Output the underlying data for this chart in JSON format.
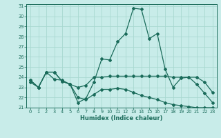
{
  "xlabel": "Humidex (Indice chaleur)",
  "bg_color": "#c8ece9",
  "grid_color": "#a8d8d0",
  "line_color": "#1a6b5a",
  "x": [
    0,
    1,
    2,
    3,
    4,
    5,
    6,
    7,
    8,
    9,
    10,
    11,
    12,
    13,
    14,
    15,
    16,
    17,
    18,
    19,
    20,
    21,
    22,
    23
  ],
  "line1": [
    23.5,
    23.0,
    24.5,
    23.8,
    23.7,
    23.3,
    21.5,
    21.9,
    23.5,
    25.8,
    25.7,
    27.5,
    28.3,
    30.8,
    30.7,
    27.8,
    28.3,
    24.8,
    23.0,
    23.9,
    24.0,
    23.3,
    22.4,
    21.5
  ],
  "line2": [
    23.7,
    23.0,
    24.5,
    24.5,
    23.6,
    23.3,
    23.0,
    23.2,
    24.0,
    24.0,
    24.1,
    24.1,
    24.1,
    24.1,
    24.1,
    24.1,
    24.1,
    24.1,
    24.0,
    24.0,
    24.0,
    24.0,
    23.5,
    22.5
  ],
  "line3": [
    23.7,
    23.0,
    24.5,
    24.5,
    23.6,
    23.3,
    22.0,
    21.8,
    22.3,
    22.8,
    22.8,
    22.9,
    22.8,
    22.5,
    22.2,
    22.0,
    21.8,
    21.5,
    21.3,
    21.2,
    21.1,
    21.0,
    21.0,
    21.0
  ],
  "ylim": [
    21,
    31
  ],
  "xlim": [
    -0.5,
    23.5
  ],
  "yticks": [
    21,
    22,
    23,
    24,
    25,
    26,
    27,
    28,
    29,
    30,
    31
  ],
  "xticks": [
    0,
    1,
    2,
    3,
    4,
    5,
    6,
    7,
    8,
    9,
    10,
    11,
    12,
    13,
    14,
    15,
    16,
    17,
    18,
    19,
    20,
    21,
    22,
    23
  ]
}
